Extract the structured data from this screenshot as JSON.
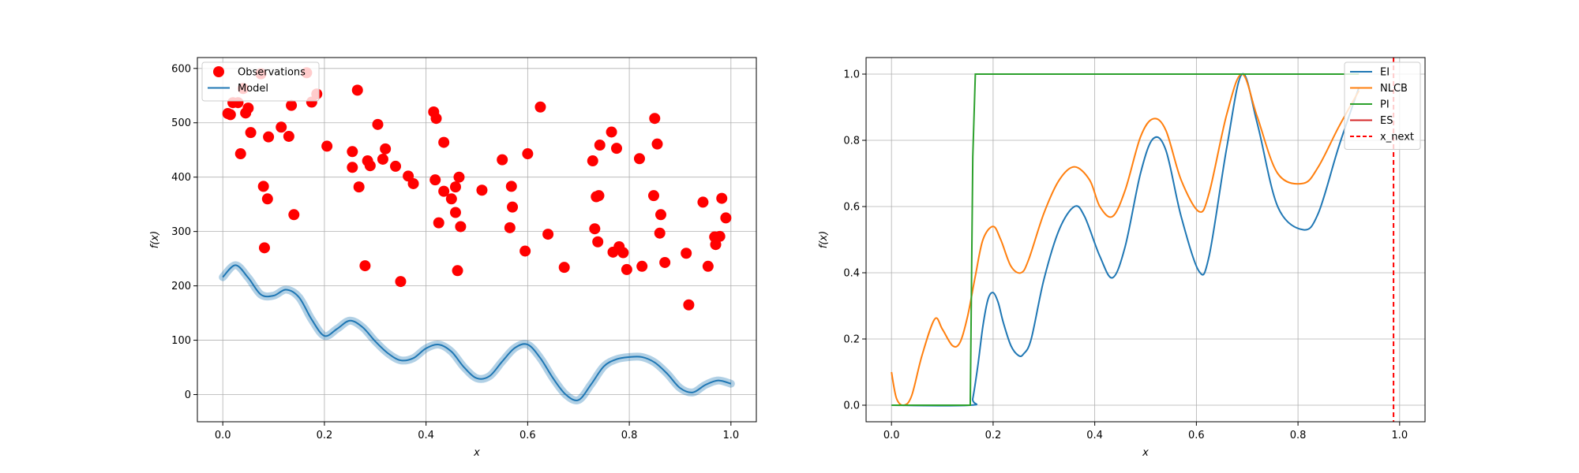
{
  "chart_data": [
    {
      "type": "scatter",
      "title": "",
      "xlabel": "x",
      "ylabel": "f(x)",
      "xlim": [
        -0.05,
        1.05
      ],
      "ylim": [
        -50,
        620
      ],
      "xticks": [
        0.0,
        0.2,
        0.4,
        0.6,
        0.8,
        1.0
      ],
      "xtick_labels": [
        "0.0",
        "0.2",
        "0.4",
        "0.6",
        "0.8",
        "1.0"
      ],
      "yticks": [
        0,
        100,
        200,
        300,
        400,
        500,
        600
      ],
      "ytick_labels": [
        "0",
        "100",
        "200",
        "300",
        "400",
        "500",
        "600"
      ],
      "grid": true,
      "legend_position": "top-left",
      "series": [
        {
          "name": "Observations",
          "kind": "scatter",
          "color": "#ff0000",
          "points": [
            [
              0.01,
              517
            ],
            [
              0.015,
              515
            ],
            [
              0.02,
              537
            ],
            [
              0.03,
              537
            ],
            [
              0.035,
              443
            ],
            [
              0.04,
              563
            ],
            [
              0.045,
              518
            ],
            [
              0.05,
              527
            ],
            [
              0.055,
              482
            ],
            [
              0.075,
              590
            ],
            [
              0.08,
              383
            ],
            [
              0.082,
              270
            ],
            [
              0.088,
              360
            ],
            [
              0.09,
              474
            ],
            [
              0.115,
              492
            ],
            [
              0.13,
              475
            ],
            [
              0.135,
              532
            ],
            [
              0.14,
              331
            ],
            [
              0.165,
              592
            ],
            [
              0.175,
              538
            ],
            [
              0.185,
              553
            ],
            [
              0.205,
              457
            ],
            [
              0.255,
              447
            ],
            [
              0.255,
              418
            ],
            [
              0.265,
              560
            ],
            [
              0.268,
              382
            ],
            [
              0.28,
              237
            ],
            [
              0.285,
              430
            ],
            [
              0.29,
              421
            ],
            [
              0.305,
              497
            ],
            [
              0.315,
              433
            ],
            [
              0.32,
              452
            ],
            [
              0.34,
              420
            ],
            [
              0.35,
              208
            ],
            [
              0.365,
              402
            ],
            [
              0.375,
              388
            ],
            [
              0.415,
              520
            ],
            [
              0.418,
              395
            ],
            [
              0.42,
              508
            ],
            [
              0.425,
              316
            ],
            [
              0.435,
              464
            ],
            [
              0.435,
              374
            ],
            [
              0.45,
              360
            ],
            [
              0.458,
              382
            ],
            [
              0.458,
              335
            ],
            [
              0.462,
              228
            ],
            [
              0.465,
              400
            ],
            [
              0.468,
              309
            ],
            [
              0.51,
              376
            ],
            [
              0.55,
              432
            ],
            [
              0.565,
              307
            ],
            [
              0.568,
              383
            ],
            [
              0.57,
              345
            ],
            [
              0.595,
              264
            ],
            [
              0.6,
              443
            ],
            [
              0.625,
              529
            ],
            [
              0.64,
              295
            ],
            [
              0.672,
              234
            ],
            [
              0.728,
              430
            ],
            [
              0.732,
              305
            ],
            [
              0.735,
              364
            ],
            [
              0.738,
              281
            ],
            [
              0.74,
              366
            ],
            [
              0.742,
              459
            ],
            [
              0.765,
              483
            ],
            [
              0.768,
              262
            ],
            [
              0.775,
              453
            ],
            [
              0.78,
              272
            ],
            [
              0.788,
              261
            ],
            [
              0.795,
              230
            ],
            [
              0.82,
              434
            ],
            [
              0.825,
              236
            ],
            [
              0.848,
              366
            ],
            [
              0.85,
              508
            ],
            [
              0.855,
              461
            ],
            [
              0.86,
              297
            ],
            [
              0.862,
              331
            ],
            [
              0.87,
              243
            ],
            [
              0.912,
              260
            ],
            [
              0.917,
              165
            ],
            [
              0.945,
              354
            ],
            [
              0.955,
              236
            ],
            [
              0.968,
              290
            ],
            [
              0.97,
              276
            ],
            [
              0.978,
              291
            ],
            [
              0.982,
              361
            ],
            [
              0.99,
              325
            ]
          ]
        },
        {
          "name": "Model",
          "kind": "line",
          "color": "#1f77b4",
          "x": [
            0.0,
            0.025,
            0.05,
            0.075,
            0.1,
            0.125,
            0.15,
            0.175,
            0.2,
            0.225,
            0.25,
            0.275,
            0.3,
            0.325,
            0.35,
            0.375,
            0.4,
            0.425,
            0.45,
            0.475,
            0.5,
            0.525,
            0.55,
            0.575,
            0.6,
            0.625,
            0.65,
            0.675,
            0.7,
            0.725,
            0.75,
            0.775,
            0.8,
            0.825,
            0.85,
            0.875,
            0.9,
            0.925,
            0.95,
            0.975,
            1.0
          ],
          "y": [
            216,
            238,
            215,
            184,
            182,
            193,
            179,
            138,
            108,
            121,
            136,
            124,
            98,
            76,
            63,
            67,
            85,
            92,
            79,
            50,
            30,
            34,
            61,
            86,
            92,
            67,
            30,
            0,
            -10,
            19,
            52,
            65,
            69,
            69,
            59,
            38,
            12,
            4,
            18,
            26,
            20
          ]
        }
      ]
    },
    {
      "type": "line",
      "title": "",
      "xlabel": "x",
      "ylabel": "f(x)",
      "xlim": [
        -0.05,
        1.05
      ],
      "ylim": [
        -0.05,
        1.05
      ],
      "xticks": [
        0.0,
        0.2,
        0.4,
        0.6,
        0.8,
        1.0
      ],
      "xtick_labels": [
        "0.0",
        "0.2",
        "0.4",
        "0.6",
        "0.8",
        "1.0"
      ],
      "yticks": [
        0.0,
        0.2,
        0.4,
        0.6,
        0.8,
        1.0
      ],
      "ytick_labels": [
        "0.0",
        "0.2",
        "0.4",
        "0.6",
        "0.8",
        "1.0"
      ],
      "grid": true,
      "legend_position": "top-right",
      "series": [
        {
          "name": "EI",
          "color": "#1f77b4",
          "x": [
            0.0,
            0.155,
            0.16,
            0.17,
            0.18,
            0.19,
            0.2,
            0.21,
            0.22,
            0.235,
            0.25,
            0.26,
            0.275,
            0.3,
            0.33,
            0.36,
            0.38,
            0.41,
            0.435,
            0.46,
            0.49,
            0.515,
            0.54,
            0.57,
            0.605,
            0.625,
            0.66,
            0.69,
            0.72,
            0.76,
            0.81,
            0.84,
            0.88,
            0.92
          ],
          "y": [
            0.0,
            0.0,
            0.02,
            0.12,
            0.24,
            0.32,
            0.34,
            0.31,
            0.25,
            0.18,
            0.15,
            0.155,
            0.2,
            0.38,
            0.53,
            0.6,
            0.57,
            0.45,
            0.385,
            0.48,
            0.7,
            0.805,
            0.77,
            0.57,
            0.405,
            0.45,
            0.78,
            1.0,
            0.85,
            0.6,
            0.53,
            0.58,
            0.78,
            0.96
          ]
        },
        {
          "name": "NLCB",
          "color": "#ff7f0e",
          "x": [
            0.0,
            0.01,
            0.025,
            0.04,
            0.06,
            0.085,
            0.1,
            0.12,
            0.135,
            0.15,
            0.165,
            0.18,
            0.2,
            0.215,
            0.235,
            0.255,
            0.27,
            0.3,
            0.33,
            0.36,
            0.39,
            0.41,
            0.435,
            0.46,
            0.49,
            0.515,
            0.54,
            0.57,
            0.605,
            0.625,
            0.66,
            0.69,
            0.72,
            0.76,
            0.81,
            0.84,
            0.88,
            0.92
          ],
          "y": [
            0.1,
            0.02,
            0.0,
            0.03,
            0.15,
            0.26,
            0.23,
            0.18,
            0.19,
            0.27,
            0.39,
            0.5,
            0.54,
            0.5,
            0.42,
            0.4,
            0.44,
            0.58,
            0.68,
            0.72,
            0.68,
            0.6,
            0.57,
            0.65,
            0.81,
            0.865,
            0.83,
            0.68,
            0.585,
            0.64,
            0.88,
            1.0,
            0.87,
            0.7,
            0.67,
            0.72,
            0.84,
            0.95
          ]
        },
        {
          "name": "PI",
          "color": "#2ca02c",
          "x": [
            0.0,
            0.155,
            0.16,
            0.165,
            0.92
          ],
          "y": [
            0.0,
            0.0,
            0.75,
            1.0,
            1.0
          ]
        },
        {
          "name": "ES",
          "color": "#d62728",
          "x": [],
          "y": []
        },
        {
          "name": "x_next",
          "color": "#ff0000",
          "kind": "vline",
          "value": 0.988
        }
      ]
    }
  ]
}
